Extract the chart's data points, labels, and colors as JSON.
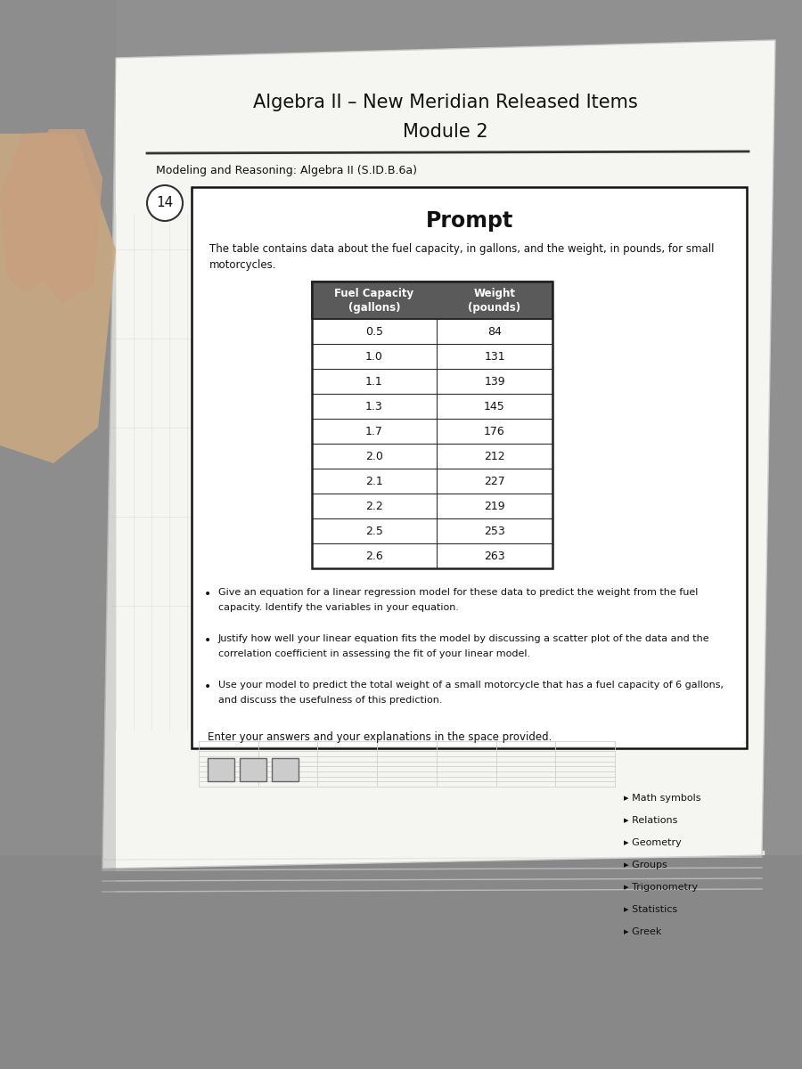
{
  "title_line1": "Algebra II – New Meridian Released Items",
  "title_line2": "Module 2",
  "subtitle": "Modeling and Reasoning: Algebra II (S.ID.B.6a)",
  "question_number": "14",
  "prompt_title": "Prompt",
  "intro_line1": "The table contains data about the fuel capacity, in gallons, and the weight, in pounds, for small",
  "intro_line2": "motorcycles.",
  "table_data": [
    [
      0.5,
      84
    ],
    [
      1.0,
      131
    ],
    [
      1.1,
      139
    ],
    [
      1.3,
      145
    ],
    [
      1.7,
      176
    ],
    [
      2.0,
      212
    ],
    [
      2.1,
      227
    ],
    [
      2.2,
      219
    ],
    [
      2.5,
      253
    ],
    [
      2.6,
      263
    ]
  ],
  "bullet_points": [
    [
      "Give an equation for a linear regression model for these data to predict the weight from the fuel",
      "capacity. Identify the variables in your equation."
    ],
    [
      "Justify how well your linear equation fits the model by discussing a scatter plot of the data and the",
      "correlation coefficient in assessing the fit of your linear model."
    ],
    [
      "Use your model to predict the total weight of a small motorcycle that has a fuel capacity of 6 gallons,",
      "and discuss the usefulness of this prediction."
    ]
  ],
  "enter_text": "Enter your answers and your explanations in the space provided.",
  "sidebar_items": [
    "▸ Math symbols",
    "▸ Relations",
    "▸ Geometry",
    "▸ Groups",
    "▸ Trigonometry",
    "▸ Statistics",
    "▸ Greek"
  ],
  "bg_color_table": "#9a9a9a",
  "bg_color_paper": "#e8e8e8",
  "paper_color": "#f8f8f6",
  "header_bg": "#5a5a5a",
  "table_border_color": "#222222",
  "box_border_color": "#111111"
}
